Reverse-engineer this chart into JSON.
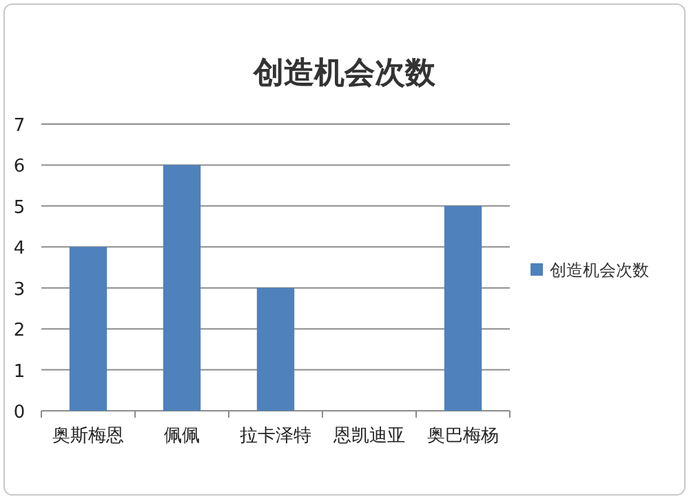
{
  "chart_data": {
    "type": "bar",
    "title": "创造机会次数",
    "categories": [
      "奥斯梅恩",
      "佩佩",
      "拉卡泽特",
      "恩凯迪亚",
      "奥巴梅杨"
    ],
    "series": [
      {
        "name": "创造机会次数",
        "color": "#4f81bd",
        "values": [
          4,
          6,
          3,
          0,
          5
        ]
      }
    ],
    "ylim": [
      0,
      7
    ],
    "yticks": [
      0,
      1,
      2,
      3,
      4,
      5,
      6,
      7
    ],
    "grid": "y",
    "legend": "right"
  }
}
